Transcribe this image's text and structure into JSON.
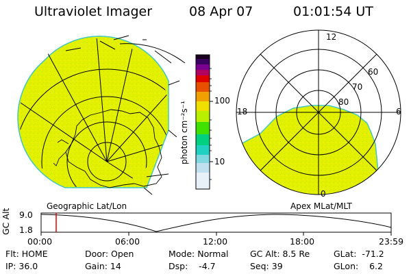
{
  "header": {
    "instrument": "Ultraviolet Imager",
    "date": "08 Apr 07",
    "time": "01:01:54 UT"
  },
  "left_panel": {
    "caption": "Geographic Lat/Lon"
  },
  "right_panel": {
    "caption": "Apex MLat/MLT",
    "mlt_labels": [
      "12",
      "18",
      "6",
      "0"
    ],
    "mlat_labels": [
      "60",
      "70",
      "80"
    ]
  },
  "colorbar": {
    "unit": "photon cm⁻²s⁻¹",
    "ticks": [
      "100",
      "10"
    ]
  },
  "altitude_plot": {
    "ylabel": "GC Alt",
    "yticks": [
      "9.0",
      "1.8"
    ],
    "xticks": [
      "00:00",
      "06:00",
      "12:00",
      "18:00",
      "23:59"
    ],
    "marker_time": "01:01:54"
  },
  "status": {
    "flt": "Flt: HOME",
    "ip": "IP: 36.0",
    "door": "Door: Open",
    "gain": "Gain: 14",
    "mode": "Mode: Normal",
    "dsp": "Dsp:    -4.7",
    "gcalt": "GC Alt: 8.5 Re",
    "seq": "Seq: 39",
    "glat": "GLat:  -71.2",
    "glon": "GLon:    6.2"
  },
  "colors": {
    "fill": "#e3f000",
    "edge": "#40c8c0"
  }
}
